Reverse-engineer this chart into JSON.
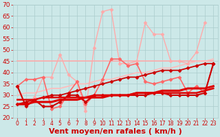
{
  "title": "",
  "xlabel": "Vent moyen/en rafales ( km/h )",
  "ylabel": "",
  "background_color": "#cce8e8",
  "grid_color": "#aacccc",
  "xlim": [
    -0.5,
    23.5
  ],
  "ylim": [
    20,
    70
  ],
  "yticks": [
    20,
    25,
    30,
    35,
    40,
    45,
    50,
    55,
    60,
    65,
    70
  ],
  "xticks": [
    0,
    1,
    2,
    3,
    4,
    5,
    6,
    7,
    8,
    9,
    10,
    11,
    12,
    13,
    14,
    15,
    16,
    17,
    18,
    19,
    20,
    21,
    22,
    23
  ],
  "series": [
    {
      "y": [
        45,
        45,
        45,
        45,
        45,
        45,
        45,
        45,
        45,
        45,
        45,
        45,
        45,
        45,
        45,
        45,
        45,
        45,
        45,
        45,
        45,
        45,
        45,
        45
      ],
      "color": "#ffaaaa",
      "lw": 1.2,
      "marker": null,
      "zorder": 2
    },
    {
      "y": [
        30,
        31,
        31,
        32,
        33,
        33,
        34,
        35,
        35,
        36,
        37,
        37,
        38,
        39,
        40,
        40,
        41,
        42,
        42,
        43,
        44,
        45,
        45,
        46
      ],
      "color": "#ffbbbb",
      "lw": 1.2,
      "marker": null,
      "zorder": 2
    },
    {
      "y": [
        34,
        25,
        29,
        38,
        38,
        48,
        39,
        36,
        23,
        51,
        67,
        68,
        44,
        44,
        45,
        62,
        57,
        57,
        45,
        45,
        44,
        49,
        62,
        null
      ],
      "color": "#ffaaaa",
      "lw": 1.0,
      "marker": "D",
      "markersize": 2.5,
      "zorder": 3
    },
    {
      "y": [
        34,
        37,
        37,
        38,
        24,
        25,
        31,
        36,
        26,
        30,
        37,
        46,
        46,
        43,
        44,
        36,
        35,
        36,
        37,
        38,
        31,
        34,
        31,
        44
      ],
      "color": "#ff6666",
      "lw": 1.2,
      "marker": "D",
      "markersize": 2.5,
      "zorder": 4
    },
    {
      "y": [
        26,
        26,
        27,
        27,
        27,
        28,
        28,
        28,
        29,
        29,
        29,
        30,
        30,
        30,
        31,
        31,
        31,
        32,
        32,
        32,
        33,
        33,
        33,
        34
      ],
      "color": "#dd0000",
      "lw": 2.2,
      "marker": null,
      "zorder": 6
    },
    {
      "y": [
        28,
        28,
        28,
        29,
        29,
        29,
        29,
        29,
        29,
        30,
        30,
        30,
        30,
        30,
        31,
        31,
        31,
        31,
        31,
        31,
        31,
        31,
        32,
        33
      ],
      "color": "#dd0000",
      "lw": 1.8,
      "marker": null,
      "zorder": 6
    },
    {
      "y": [
        34,
        25,
        28,
        25,
        25,
        27,
        30,
        30,
        27,
        30,
        30,
        30,
        30,
        30,
        30,
        30,
        31,
        31,
        30,
        30,
        30,
        30,
        31,
        44
      ],
      "color": "#cc0000",
      "lw": 1.5,
      "marker": "D",
      "markersize": 2.5,
      "zorder": 5
    },
    {
      "y": [
        26,
        27,
        28,
        29,
        30,
        30,
        31,
        32,
        33,
        34,
        35,
        36,
        37,
        38,
        38,
        39,
        40,
        41,
        41,
        41,
        42,
        43,
        44,
        44
      ],
      "color": "#cc0000",
      "lw": 1.3,
      "marker": "D",
      "markersize": 2.5,
      "zorder": 5
    }
  ],
  "tick_label_color": "#cc0000",
  "xtick_fontsize": 5.5,
  "ytick_fontsize": 6.5,
  "xlabel_fontsize": 8,
  "xlabel_color": "#cc0000",
  "xlabel_bold": true,
  "wind_barb_color": "#cc0000"
}
